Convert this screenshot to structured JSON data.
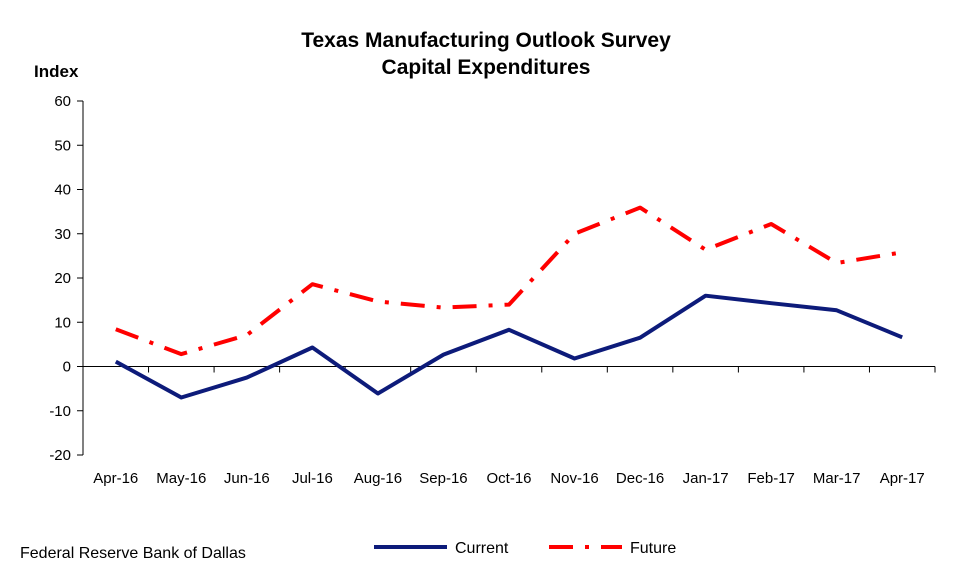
{
  "chart_data": {
    "type": "line",
    "title": "Texas Manufacturing Outlook Survey",
    "subtitle": "Capital Expenditures",
    "ylabel": "Index",
    "xlabel": "",
    "ylim": [
      -20,
      60
    ],
    "yticks": [
      -20,
      -10,
      0,
      10,
      20,
      30,
      40,
      50,
      60
    ],
    "categories": [
      "Apr-16",
      "May-16",
      "Jun-16",
      "Jul-16",
      "Aug-16",
      "Sep-16",
      "Oct-16",
      "Nov-16",
      "Dec-16",
      "Jan-17",
      "Feb-17",
      "Mar-17",
      "Apr-17"
    ],
    "series": [
      {
        "name": "Current",
        "color": "#0d1b7a",
        "style": "solid",
        "values": [
          1.1,
          -7.0,
          -2.5,
          4.3,
          -6.1,
          2.7,
          8.3,
          1.8,
          6.5,
          16.0,
          14.3,
          12.7,
          6.6
        ]
      },
      {
        "name": "Future",
        "color": "#ff0000",
        "style": "dash-dot",
        "values": [
          8.4,
          2.8,
          7.1,
          18.6,
          14.7,
          13.3,
          14.0,
          30.0,
          35.9,
          26.4,
          32.2,
          23.4,
          25.8
        ]
      }
    ],
    "grid": false,
    "legend": "bottom"
  },
  "source": "Federal Reserve Bank of Dallas"
}
